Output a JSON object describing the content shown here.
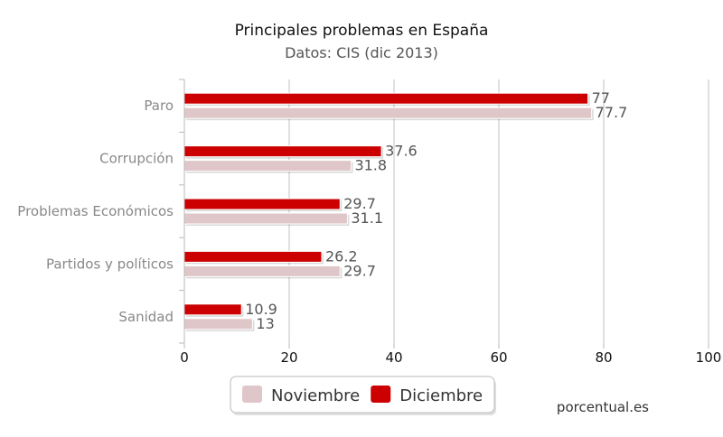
{
  "chart_data": {
    "type": "bar",
    "orientation": "horizontal",
    "title": "Principales problemas en España",
    "subtitle": "Datos: CIS (dic 2013)",
    "categories": [
      "Paro",
      "Corrupción",
      "Problemas Económicos",
      "Partidos y políticos",
      "Sanidad"
    ],
    "series": [
      {
        "name": "Diciembre",
        "color": "#cc0000",
        "values": [
          77,
          37.6,
          29.7,
          26.2,
          10.9
        ]
      },
      {
        "name": "Noviembre",
        "color": "#dfc6c8",
        "values": [
          77.7,
          31.8,
          31.1,
          29.7,
          13
        ]
      }
    ],
    "xlim": [
      0,
      100
    ],
    "xticks": [
      0,
      20,
      40,
      60,
      80,
      100
    ],
    "grid": true,
    "legend": {
      "placement": "bottom-center",
      "order": [
        "Noviembre",
        "Diciembre"
      ]
    },
    "credit": "porcentual.es"
  }
}
